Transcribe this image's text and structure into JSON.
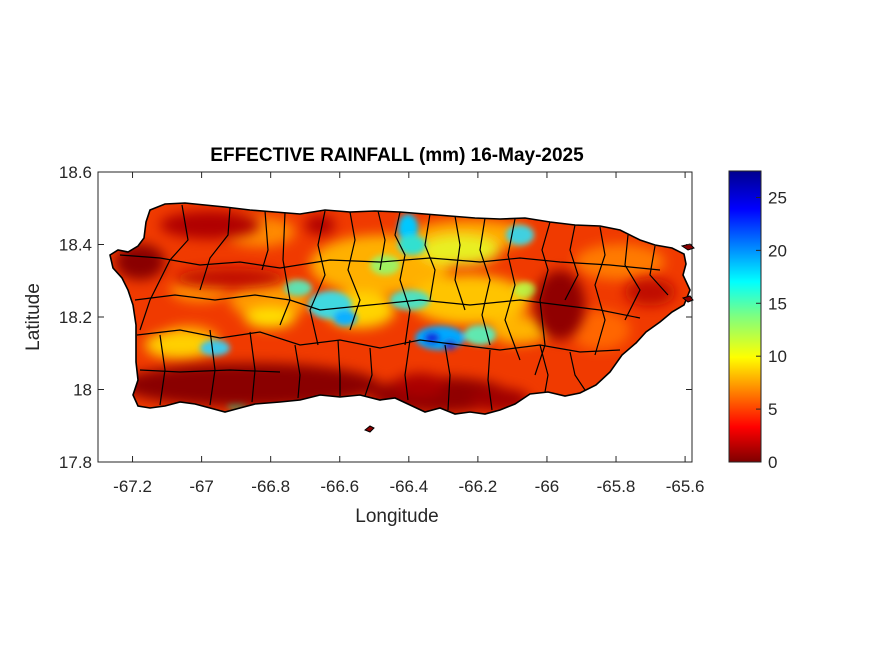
{
  "chart_data": {
    "type": "heatmap",
    "title": "EFFECTIVE RAINFALL (mm) 16-May-2025",
    "xlabel": "Longitude",
    "ylabel": "Latitude",
    "xlim": [
      -67.3,
      -65.58
    ],
    "ylim": [
      17.8,
      18.6
    ],
    "x_ticks": [
      "-67.2",
      "-67",
      "-66.8",
      "-66.6",
      "-66.4",
      "-66.2",
      "-66",
      "-65.8",
      "-65.6"
    ],
    "x_tick_values": [
      -67.2,
      -67.0,
      -66.8,
      -66.6,
      -66.4,
      -66.2,
      -66.0,
      -65.8,
      -65.6
    ],
    "y_ticks": [
      "18.6",
      "18.4",
      "18.2",
      "18",
      "17.8"
    ],
    "y_tick_values": [
      18.6,
      18.4,
      18.2,
      18.0,
      17.8
    ],
    "colorbar": {
      "colormap": "jet (reversed)",
      "min": 0,
      "max": 27.5,
      "ticks": [
        "25",
        "20",
        "15",
        "10",
        "5",
        "0"
      ],
      "tick_values": [
        25,
        20,
        15,
        10,
        5,
        0
      ]
    },
    "features": {
      "wettest_zones": [
        "interior near -66.6 to -66.3, 18.15-18.45",
        "cluster near -66.35, 18.13"
      ],
      "driest_zones": [
        "south coast -67.0 to -66.2, 17.9-18.0",
        "east -66.05, 18.25",
        "west coast -67.25, 18.35"
      ]
    }
  }
}
